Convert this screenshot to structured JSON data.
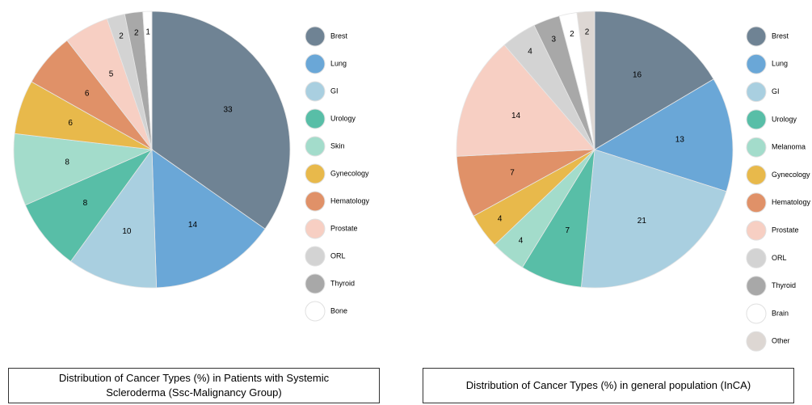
{
  "chart_data": [
    {
      "type": "pie",
      "title": "Distribution of Cancer Types (%) in Patients with Systemic Scleroderma (Ssc-Malignancy Group)",
      "categories": [
        "Brest",
        "Lung",
        "GI",
        "Urology",
        "Skin",
        "Gynecology",
        "Hematology",
        "Prostate",
        "ORL",
        "Thyroid",
        "Bone"
      ],
      "values": [
        33,
        14,
        10,
        8,
        8,
        6,
        6,
        5,
        2,
        2,
        1
      ],
      "colors": [
        "#6f8394",
        "#6aa7d7",
        "#a9cfe0",
        "#58bea7",
        "#a3dccb",
        "#e8b94b",
        "#e09168",
        "#f7cfc3",
        "#d3d3d3",
        "#a8a8a8",
        "#ffffff"
      ]
    },
    {
      "type": "pie",
      "title": "Distribution of Cancer Types (%) in general population (InCA)",
      "categories": [
        "Brest",
        "Lung",
        "GI",
        "Urology",
        "Melanoma",
        "Gynecology",
        "Hematology",
        "Prostate",
        "ORL",
        "Thyroid",
        "Brain",
        "Other"
      ],
      "values": [
        16,
        13,
        21,
        7,
        4,
        4,
        7,
        14,
        4,
        3,
        2,
        2
      ],
      "colors": [
        "#6f8394",
        "#6aa7d7",
        "#a9cfe0",
        "#58bea7",
        "#a3dccb",
        "#e8b94b",
        "#e09168",
        "#f7cfc3",
        "#d3d3d3",
        "#a8a8a8",
        "#ffffff",
        "#ddd7d3"
      ]
    }
  ]
}
